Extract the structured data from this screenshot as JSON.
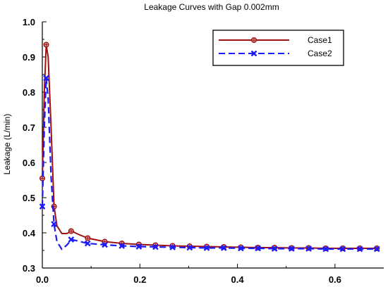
{
  "chart_data": {
    "type": "line",
    "title": "Leakage Curves with Gap 0.002mm",
    "xlabel": "",
    "ylabel": "Leakage (L/min)",
    "xlim": [
      0,
      0.7
    ],
    "ylim": [
      0.3,
      1.0
    ],
    "xticks": [
      "0.0",
      "0.2",
      "0.4",
      "0.6"
    ],
    "yticks": [
      "0.3",
      "0.4",
      "0.5",
      "0.6",
      "0.7",
      "0.8",
      "0.9",
      "1.0"
    ],
    "grid": false,
    "legend_position": "top-right",
    "series": [
      {
        "name": "Case1",
        "color": "#a01010",
        "line_style": "solid",
        "marker": "circle-plus",
        "points": [
          [
            0.0,
            0.555
          ],
          [
            0.004,
            0.8
          ],
          [
            0.008,
            0.935
          ],
          [
            0.012,
            0.9
          ],
          [
            0.018,
            0.7
          ],
          [
            0.024,
            0.475
          ],
          [
            0.03,
            0.42
          ],
          [
            0.04,
            0.398
          ],
          [
            0.05,
            0.398
          ],
          [
            0.06,
            0.405
          ],
          [
            0.075,
            0.395
          ],
          [
            0.093,
            0.385
          ],
          [
            0.128,
            0.375
          ],
          [
            0.163,
            0.37
          ],
          [
            0.198,
            0.367
          ],
          [
            0.232,
            0.365
          ],
          [
            0.267,
            0.363
          ],
          [
            0.302,
            0.362
          ],
          [
            0.337,
            0.361
          ],
          [
            0.372,
            0.36
          ],
          [
            0.407,
            0.359
          ],
          [
            0.442,
            0.358
          ],
          [
            0.476,
            0.358
          ],
          [
            0.511,
            0.357
          ],
          [
            0.546,
            0.357
          ],
          [
            0.581,
            0.356
          ],
          [
            0.616,
            0.356
          ],
          [
            0.651,
            0.356
          ],
          [
            0.686,
            0.356
          ]
        ],
        "marker_points": [
          [
            0.0,
            0.555
          ],
          [
            0.008,
            0.935
          ],
          [
            0.024,
            0.475
          ],
          [
            0.059,
            0.405
          ],
          [
            0.093,
            0.385
          ],
          [
            0.128,
            0.375
          ],
          [
            0.163,
            0.37
          ],
          [
            0.198,
            0.367
          ],
          [
            0.232,
            0.365
          ],
          [
            0.267,
            0.363
          ],
          [
            0.302,
            0.362
          ],
          [
            0.337,
            0.361
          ],
          [
            0.372,
            0.36
          ],
          [
            0.407,
            0.359
          ],
          [
            0.442,
            0.358
          ],
          [
            0.476,
            0.358
          ],
          [
            0.511,
            0.357
          ],
          [
            0.546,
            0.357
          ],
          [
            0.581,
            0.356
          ],
          [
            0.616,
            0.356
          ],
          [
            0.651,
            0.356
          ],
          [
            0.686,
            0.356
          ]
        ]
      },
      {
        "name": "Case2",
        "color": "#1a1aff",
        "line_style": "dashed",
        "marker": "x",
        "points": [
          [
            0.0,
            0.475
          ],
          [
            0.004,
            0.7
          ],
          [
            0.008,
            0.84
          ],
          [
            0.012,
            0.78
          ],
          [
            0.018,
            0.56
          ],
          [
            0.024,
            0.425
          ],
          [
            0.03,
            0.375
          ],
          [
            0.04,
            0.353
          ],
          [
            0.05,
            0.365
          ],
          [
            0.06,
            0.381
          ],
          [
            0.075,
            0.376
          ],
          [
            0.093,
            0.37
          ],
          [
            0.128,
            0.366
          ],
          [
            0.163,
            0.363
          ],
          [
            0.198,
            0.361
          ],
          [
            0.232,
            0.36
          ],
          [
            0.267,
            0.359
          ],
          [
            0.302,
            0.358
          ],
          [
            0.337,
            0.357
          ],
          [
            0.372,
            0.357
          ],
          [
            0.407,
            0.356
          ],
          [
            0.442,
            0.356
          ],
          [
            0.476,
            0.355
          ],
          [
            0.511,
            0.355
          ],
          [
            0.546,
            0.355
          ],
          [
            0.581,
            0.354
          ],
          [
            0.616,
            0.354
          ],
          [
            0.651,
            0.354
          ],
          [
            0.686,
            0.354
          ]
        ],
        "marker_points": [
          [
            0.0,
            0.475
          ],
          [
            0.008,
            0.84
          ],
          [
            0.024,
            0.425
          ],
          [
            0.059,
            0.381
          ],
          [
            0.093,
            0.37
          ],
          [
            0.128,
            0.366
          ],
          [
            0.163,
            0.363
          ],
          [
            0.198,
            0.361
          ],
          [
            0.232,
            0.36
          ],
          [
            0.267,
            0.359
          ],
          [
            0.302,
            0.358
          ],
          [
            0.337,
            0.357
          ],
          [
            0.372,
            0.357
          ],
          [
            0.407,
            0.356
          ],
          [
            0.442,
            0.356
          ],
          [
            0.476,
            0.355
          ],
          [
            0.511,
            0.355
          ],
          [
            0.546,
            0.355
          ],
          [
            0.581,
            0.354
          ],
          [
            0.616,
            0.354
          ],
          [
            0.651,
            0.354
          ],
          [
            0.686,
            0.354
          ]
        ]
      }
    ]
  }
}
